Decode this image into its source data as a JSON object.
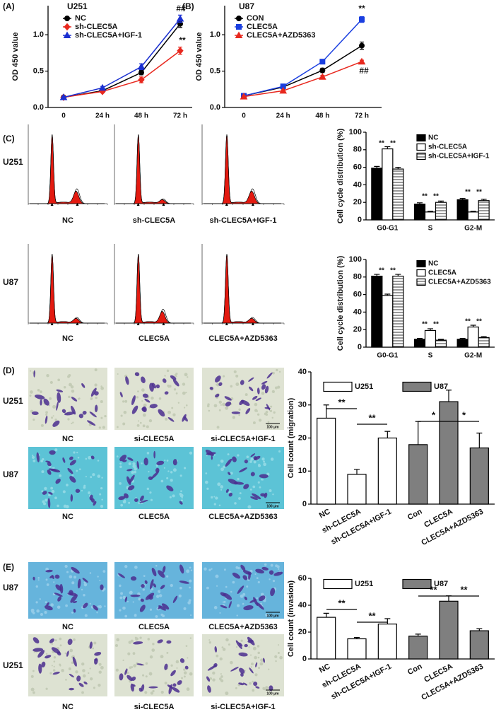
{
  "chart_data": [
    {
      "type": "line",
      "panel": "(A)",
      "title": "U251",
      "ylabel": "OD 450 value",
      "categories": [
        "0",
        "24 h",
        "48 h",
        "72 h"
      ],
      "ylim": [
        0,
        1.4
      ],
      "yticks": [
        {
          "value": 0,
          "label": "0.0"
        },
        0.5,
        {
          "value": 1,
          "label": "1.0"
        }
      ],
      "series": [
        {
          "name": "NC",
          "color": "#000000",
          "marker": "circle",
          "values": [
            0.14,
            0.23,
            0.48,
            1.15
          ],
          "errors": [
            0.01,
            0.02,
            0.03,
            0.05
          ]
        },
        {
          "name": "sh-CLEC5A",
          "color": "#e8281e",
          "marker": "diamond",
          "values": [
            0.14,
            0.22,
            0.38,
            0.78
          ],
          "errors": [
            0.01,
            0.02,
            0.04,
            0.05
          ]
        },
        {
          "name": "sh-CLEC5A+IGF-1",
          "color": "#1a2fd0",
          "marker": "triangle",
          "values": [
            0.14,
            0.27,
            0.56,
            1.22
          ],
          "errors": [
            0.01,
            0.02,
            0.04,
            0.05
          ]
        }
      ],
      "annotations": [
        "##",
        "**"
      ]
    },
    {
      "type": "line",
      "panel": "(B)",
      "title": "U87",
      "ylabel": "OD 450 value",
      "categories": [
        "0",
        "24 h",
        "48 h",
        "72 h"
      ],
      "ylim": [
        0,
        1.4
      ],
      "yticks": [
        {
          "value": 0,
          "label": "0.0"
        },
        0.5,
        {
          "value": 1,
          "label": "1.0"
        }
      ],
      "series": [
        {
          "name": "CON",
          "color": "#000000",
          "marker": "circle",
          "values": [
            0.16,
            0.28,
            0.51,
            0.85
          ],
          "errors": [
            0.01,
            0.02,
            0.03,
            0.05
          ]
        },
        {
          "name": "CLEC5A",
          "color": "#1a3fe0",
          "marker": "square",
          "values": [
            0.16,
            0.29,
            0.63,
            1.21
          ],
          "errors": [
            0.01,
            0.02,
            0.03,
            0.04
          ]
        },
        {
          "name": "CLEC5A+AZD5363",
          "color": "#e8281e",
          "marker": "triangle",
          "values": [
            0.15,
            0.23,
            0.42,
            0.63
          ],
          "errors": [
            0.01,
            0.01,
            0.02,
            0.02
          ]
        }
      ],
      "annotations": [
        "**",
        "##"
      ]
    },
    {
      "type": "bar",
      "ylabel": "Cell cycle distribution (%)",
      "categories": [
        "G0-G1",
        "S",
        "G2-M"
      ],
      "ylim": [
        0,
        100
      ],
      "yticks": [
        0,
        20,
        40,
        60,
        80,
        100
      ],
      "series": [
        {
          "name": "NC",
          "color": "#000000",
          "values": [
            59,
            18,
            23
          ],
          "errors": [
            2,
            1.5,
            1.5
          ]
        },
        {
          "name": "sh-CLEC5A",
          "color": "#ffffff",
          "values": [
            81,
            9,
            9
          ],
          "errors": [
            2.5,
            0.8,
            0.8
          ]
        },
        {
          "name": "sh-CLEC5A+IGF-1",
          "color": "#ffffff",
          "hatch": true,
          "values": [
            58,
            20,
            22
          ],
          "errors": [
            2,
            1.5,
            1.5
          ]
        }
      ],
      "annotations": [
        "**",
        "**",
        "**",
        "**",
        "**",
        "**"
      ]
    },
    {
      "type": "bar",
      "ylabel": "Cell cycle distribution (%)",
      "categories": [
        "G0-G1",
        "S",
        "G2-M"
      ],
      "ylim": [
        0,
        100
      ],
      "yticks": [
        0,
        20,
        40,
        60,
        80,
        100
      ],
      "series": [
        {
          "name": "NC",
          "color": "#000000",
          "values": [
            81,
            9,
            9
          ],
          "errors": [
            2,
            1,
            1
          ]
        },
        {
          "name": "CLEC5A",
          "color": "#ffffff",
          "values": [
            59,
            19,
            23
          ],
          "errors": [
            1.5,
            2,
            2
          ]
        },
        {
          "name": "CLEC5A+AZD5363",
          "color": "#ffffff",
          "hatch": true,
          "values": [
            81,
            8,
            11
          ],
          "errors": [
            2,
            1,
            1
          ]
        }
      ],
      "annotations": [
        "**",
        "**",
        "**",
        "**",
        "**",
        "**"
      ]
    },
    {
      "type": "bar",
      "ylabel": "Cell count (migration)",
      "categories": [
        "NC",
        "sh-CLEC5A",
        "sh-CLEC5A+IGF-1",
        "Con",
        "CLEC5A",
        "CLEC5A+AZD5363"
      ],
      "ylim": [
        0,
        40
      ],
      "yticks": [
        0,
        10,
        20,
        30,
        40
      ],
      "series": [
        {
          "name": "U251",
          "color": "#ffffff",
          "values": [
            26,
            9,
            20,
            null,
            null,
            null
          ],
          "errors": [
            4,
            1.5,
            2,
            null,
            null,
            null
          ]
        },
        {
          "name": "U87",
          "color": "#7f7f7f",
          "values": [
            null,
            null,
            null,
            18,
            31,
            17
          ],
          "errors": [
            null,
            null,
            null,
            7,
            3.5,
            4.5
          ]
        }
      ],
      "annotations": [
        "**",
        "**",
        "*",
        "*"
      ]
    },
    {
      "type": "bar",
      "ylabel": "Cell count (invasion)",
      "categories": [
        "NC",
        "sh-CLEC5A",
        "sh-CLEC5A+IGF-1",
        "Con",
        "CLEC5A",
        "CLEC5A+AZD5363"
      ],
      "ylim": [
        0,
        60
      ],
      "yticks": [
        0,
        20,
        40,
        60
      ],
      "series": [
        {
          "name": "U251",
          "color": "#ffffff",
          "values": [
            31,
            15,
            26,
            null,
            null,
            null
          ],
          "errors": [
            3,
            1,
            4,
            null,
            null,
            null
          ]
        },
        {
          "name": "U87",
          "color": "#7f7f7f",
          "values": [
            null,
            null,
            null,
            17,
            43,
            21
          ],
          "errors": [
            null,
            null,
            null,
            1.5,
            4,
            1.5
          ]
        }
      ],
      "annotations": [
        "**",
        "**",
        "**",
        "**"
      ]
    }
  ],
  "image_panels": [
    {
      "label": "(C)",
      "rows": [
        {
          "name": "U251",
          "captions": [
            "NC",
            "sh-CLEC5A",
            "sh-CLEC5A+IGF-1"
          ]
        },
        {
          "name": "U87",
          "captions": [
            "NC",
            "CLEC5A",
            "CLEC5A+AZD5363"
          ]
        }
      ]
    },
    {
      "label": "(D)",
      "rows": [
        {
          "name": "U251",
          "captions": [
            "NC",
            "si-CLEC5A",
            "si-CLEC5A+IGF-1"
          ],
          "scale_bar": "100 μm"
        },
        {
          "name": "U87",
          "captions": [
            "NC",
            "CLEC5A",
            "CLEC5A+AZD5363"
          ],
          "scale_bar": "100 μm"
        }
      ]
    },
    {
      "label": "(E)",
      "rows": [
        {
          "name": "U87",
          "captions": [
            "NC",
            "CLEC5A",
            "CLEC5A+AZD5363"
          ],
          "scale_bar": "100 μm"
        },
        {
          "name": "U251",
          "captions": [
            "NC",
            "si-CLEC5A",
            "si-CLEC5A+IGF-1"
          ],
          "scale_bar": "100 μm"
        }
      ]
    }
  ]
}
